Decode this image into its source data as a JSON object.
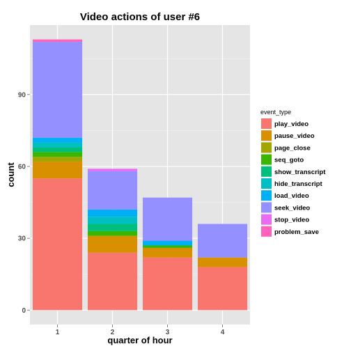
{
  "chart_data": {
    "type": "bar",
    "stacked": true,
    "title": "Video actions of user #6",
    "xlabel": "quarter of hour",
    "ylabel": "count",
    "categories": [
      "1",
      "2",
      "3",
      "4"
    ],
    "yticks": [
      0,
      30,
      60,
      90
    ],
    "ylim": [
      -6,
      119
    ],
    "grid": true,
    "legend": {
      "title": "event_type",
      "placement": "right"
    },
    "series": [
      {
        "name": "play_video",
        "color": "#F8766D",
        "values": [
          55,
          24,
          22,
          18
        ]
      },
      {
        "name": "pause_video",
        "color": "#D89000",
        "values": [
          7,
          7,
          4,
          4
        ]
      },
      {
        "name": "page_close",
        "color": "#A3A500",
        "values": [
          2,
          0,
          0,
          0
        ]
      },
      {
        "name": "seq_goto",
        "color": "#39B600",
        "values": [
          2,
          2,
          1,
          0
        ]
      },
      {
        "name": "show_transcript",
        "color": "#00BF7D",
        "values": [
          2,
          3,
          0,
          0
        ]
      },
      {
        "name": "hide_transcript",
        "color": "#00BFC4",
        "values": [
          2,
          3,
          0,
          0
        ]
      },
      {
        "name": "load_video",
        "color": "#00B0F6",
        "values": [
          2,
          3,
          2,
          0
        ]
      },
      {
        "name": "seek_video",
        "color": "#9590FF",
        "values": [
          40,
          16,
          18,
          14
        ]
      },
      {
        "name": "stop_video",
        "color": "#E76BF3",
        "values": [
          0,
          1,
          0,
          0
        ]
      },
      {
        "name": "problem_save",
        "color": "#FF62BC",
        "values": [
          1,
          0,
          0,
          0
        ]
      }
    ]
  }
}
